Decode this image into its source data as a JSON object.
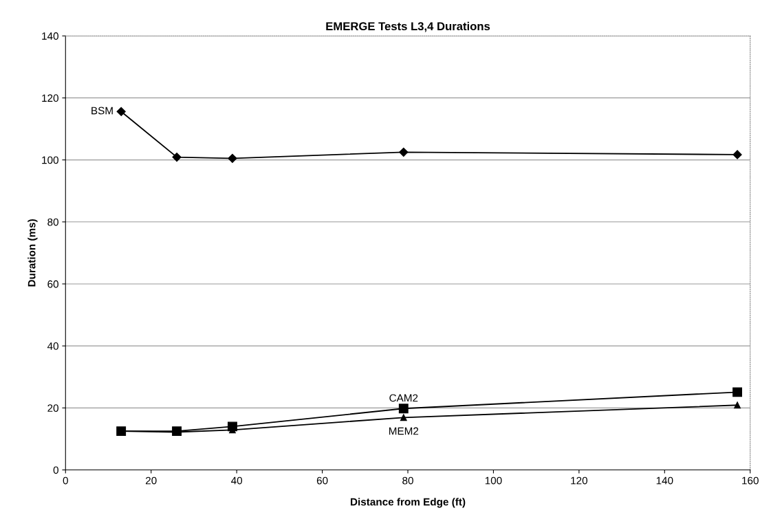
{
  "chart_data": {
    "type": "line",
    "title": "EMERGE Tests L3,4 Durations",
    "xlabel": "Distance from Edge (ft)",
    "ylabel": "Duration (ms)",
    "x": [
      13,
      26,
      39,
      79,
      157
    ],
    "series": [
      {
        "name": "BSM",
        "color": "#000000",
        "marker": "diamond",
        "values": [
          115.6,
          100.9,
          100.5,
          102.5,
          101.7
        ]
      },
      {
        "name": "CAM2",
        "color": "#000000",
        "marker": "square",
        "values": [
          12.5,
          12.5,
          14.0,
          19.8,
          25.1
        ]
      },
      {
        "name": "MEM2",
        "color": "#000000",
        "marker": "triangle",
        "values": [
          12.5,
          12.2,
          12.9,
          16.9,
          20.9
        ]
      }
    ],
    "xlim": [
      0,
      160
    ],
    "xticks": [
      0,
      20,
      40,
      60,
      80,
      100,
      120,
      140,
      160
    ],
    "ylim": [
      0,
      140
    ],
    "yticks": [
      0,
      20,
      40,
      60,
      80,
      100,
      120,
      140
    ],
    "grid": "y",
    "legend": false,
    "line_style": "solid"
  }
}
